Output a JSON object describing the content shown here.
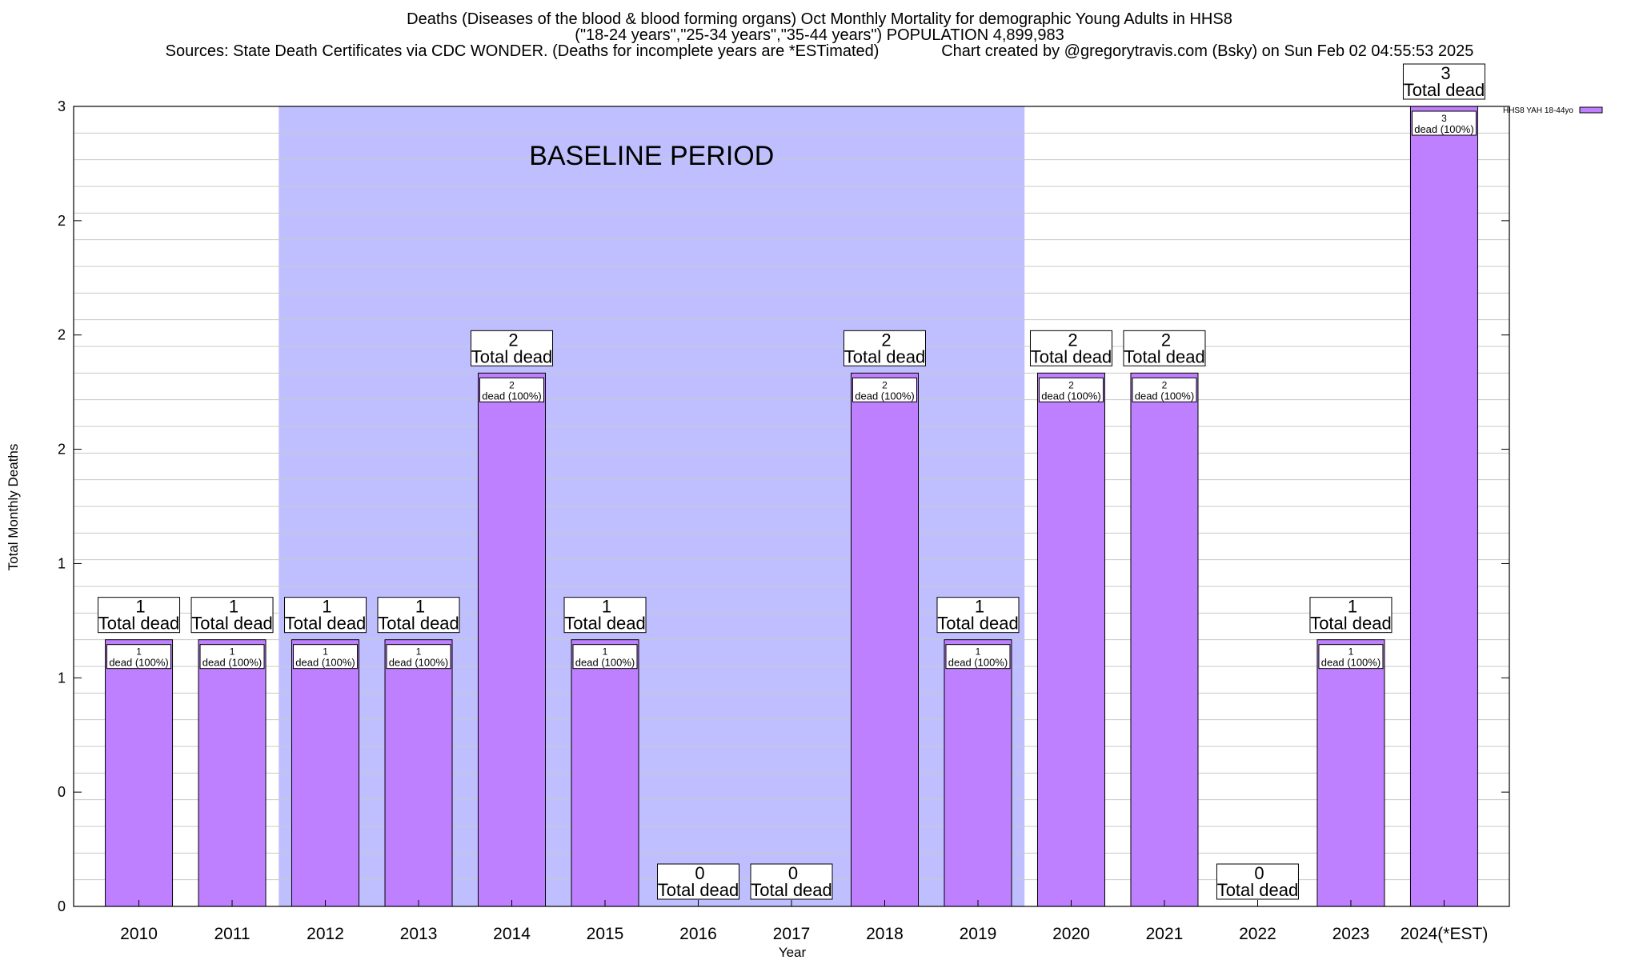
{
  "chart_data": {
    "type": "bar",
    "title_lines": [
      "Deaths (Diseases of the blood & blood forming organs) Oct Monthly Mortality for demographic Young Adults in HHS8",
      "(\"18-24 years\",\"25-34 years\",\"35-44 years\") POPULATION 4,899,983",
      "Sources: State Death Certificates via CDC WONDER. (Deaths for incomplete years are *ESTimated)              Chart created by @gregorytravis.com (Bsky) on Sun Feb 02 04:55:53 2025"
    ],
    "xlabel": "Year",
    "ylabel": "Total Monthly Deaths",
    "categories": [
      "2010",
      "2011",
      "2012",
      "2013",
      "2014",
      "2015",
      "2016",
      "2017",
      "2018",
      "2019",
      "2020",
      "2021",
      "2022",
      "2023",
      "2024(*EST)"
    ],
    "series": [
      {
        "name": "HHS8 YAH 18-44yo",
        "color": "#bf80ff",
        "values": [
          1,
          1,
          1,
          1,
          2,
          1,
          0,
          0,
          2,
          1,
          2,
          2,
          0,
          1,
          3
        ]
      }
    ],
    "bar_total_labels": [
      "1",
      "1",
      "1",
      "1",
      "2",
      "1",
      "0",
      "0",
      "2",
      "1",
      "2",
      "2",
      "0",
      "1",
      "3"
    ],
    "total_dead_text": "Total dead",
    "inner_labels": [
      "1",
      "1",
      "1",
      "1",
      "2",
      "1",
      "",
      "",
      "2",
      "1",
      "2",
      "2",
      "",
      "1",
      "3"
    ],
    "inner_label_text": "dead (100%)",
    "y_tick_labels": [
      "0",
      "0",
      "1",
      "1",
      "2",
      "2",
      "2",
      "3"
    ],
    "ylim": [
      0,
      3
    ],
    "grid": true,
    "baseline_period": {
      "label": "BASELINE PERIOD",
      "from": "2012",
      "to": "2019",
      "color": "#bfbfff"
    },
    "legend_position": "top-right"
  }
}
